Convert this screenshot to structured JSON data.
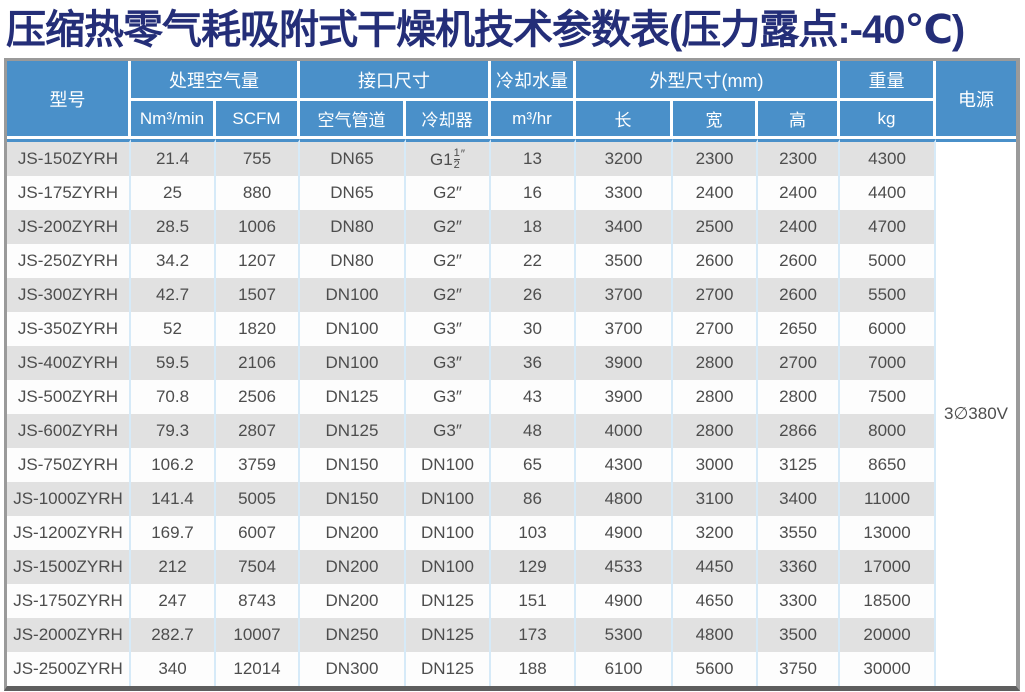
{
  "title": "压缩热零气耗吸附式干燥机技术参数表(压力露点:-40℃)",
  "colors": {
    "title_navy": "#242e78",
    "header_blue": "#4a90c9",
    "row_gray": "#e1e1e1",
    "row_white": "#fdfdfd",
    "separator_blue": "#d6eaf8",
    "frame_gray": "#9a9a9a",
    "frame_bottom_dark": "#5e5e5e",
    "cell_text": "#4d4d4d"
  },
  "table": {
    "header": {
      "model": "型号",
      "air_volume": "处理空气量",
      "air_volume_units": [
        "Nm³/min",
        "SCFM"
      ],
      "port_size": "接口尺寸",
      "port_size_units": [
        "空气管道",
        "冷却器"
      ],
      "cooling_water": "冷却水量",
      "cooling_water_unit": "m³/hr",
      "dimensions": "外型尺寸(mm)",
      "dimension_units": [
        "长",
        "宽",
        "高"
      ],
      "weight": "重量",
      "weight_unit": "kg",
      "power": "电源"
    },
    "power_value": "3∅380V",
    "column_names": [
      "model",
      "nm3-per-min",
      "scfm",
      "air-pipe",
      "cooler",
      "cooling-water",
      "length",
      "width",
      "height",
      "weight"
    ],
    "rows": [
      [
        "JS-150ZYRH",
        "21.4",
        "755",
        "DN65",
        "G1 1/2″",
        "13",
        "3200",
        "2300",
        "2300",
        "4300"
      ],
      [
        "JS-175ZYRH",
        "25",
        "880",
        "DN65",
        "G2″",
        "16",
        "3300",
        "2400",
        "2400",
        "4400"
      ],
      [
        "JS-200ZYRH",
        "28.5",
        "1006",
        "DN80",
        "G2″",
        "18",
        "3400",
        "2500",
        "2400",
        "4700"
      ],
      [
        "JS-250ZYRH",
        "34.2",
        "1207",
        "DN80",
        "G2″",
        "22",
        "3500",
        "2600",
        "2600",
        "5000"
      ],
      [
        "JS-300ZYRH",
        "42.7",
        "1507",
        "DN100",
        "G2″",
        "26",
        "3700",
        "2700",
        "2600",
        "5500"
      ],
      [
        "JS-350ZYRH",
        "52",
        "1820",
        "DN100",
        "G3″",
        "30",
        "3700",
        "2700",
        "2650",
        "6000"
      ],
      [
        "JS-400ZYRH",
        "59.5",
        "2106",
        "DN100",
        "G3″",
        "36",
        "3900",
        "2800",
        "2700",
        "7000"
      ],
      [
        "JS-500ZYRH",
        "70.8",
        "2506",
        "DN125",
        "G3″",
        "43",
        "3900",
        "2800",
        "2800",
        "7500"
      ],
      [
        "JS-600ZYRH",
        "79.3",
        "2807",
        "DN125",
        "G3″",
        "48",
        "4000",
        "2800",
        "2866",
        "8000"
      ],
      [
        "JS-750ZYRH",
        "106.2",
        "3759",
        "DN150",
        "DN100",
        "65",
        "4300",
        "3000",
        "3125",
        "8650"
      ],
      [
        "JS-1000ZYRH",
        "141.4",
        "5005",
        "DN150",
        "DN100",
        "86",
        "4800",
        "3100",
        "3400",
        "11000"
      ],
      [
        "JS-1200ZYRH",
        "169.7",
        "6007",
        "DN200",
        "DN100",
        "103",
        "4900",
        "3200",
        "3550",
        "13000"
      ],
      [
        "JS-1500ZYRH",
        "212",
        "7504",
        "DN200",
        "DN100",
        "129",
        "4533",
        "4450",
        "3360",
        "17000"
      ],
      [
        "JS-1750ZYRH",
        "247",
        "8743",
        "DN200",
        "DN125",
        "151",
        "4900",
        "4650",
        "3300",
        "18500"
      ],
      [
        "JS-2000ZYRH",
        "282.7",
        "10007",
        "DN250",
        "DN125",
        "173",
        "5300",
        "4800",
        "3500",
        "20000"
      ],
      [
        "JS-2500ZYRH",
        "340",
        "12014",
        "DN300",
        "DN125",
        "188",
        "6100",
        "5600",
        "3750",
        "30000"
      ]
    ]
  }
}
